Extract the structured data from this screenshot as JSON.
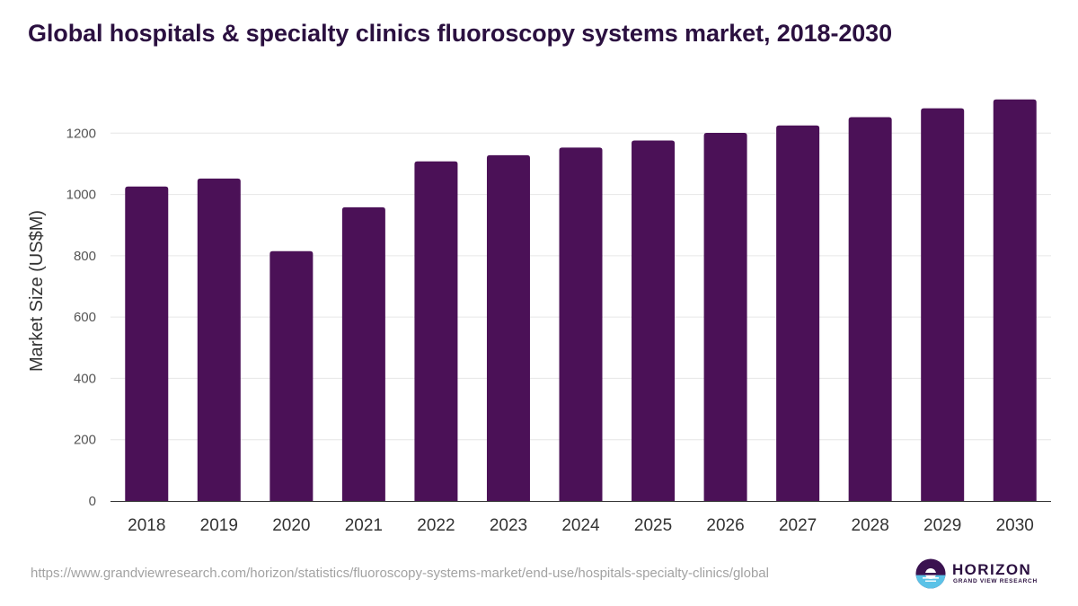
{
  "chart_data": {
    "type": "bar",
    "title": "Global hospitals & specialty clinics fluoroscopy systems market, 2018-2030",
    "xlabel": "",
    "ylabel": "Market Size (US$M)",
    "categories": [
      "2018",
      "2019",
      "2020",
      "2021",
      "2022",
      "2023",
      "2024",
      "2025",
      "2026",
      "2027",
      "2028",
      "2029",
      "2030"
    ],
    "values": [
      1026,
      1052,
      815,
      958,
      1108,
      1128,
      1153,
      1176,
      1201,
      1225,
      1252,
      1281,
      1310
    ],
    "ylim": [
      0,
      1400
    ],
    "yticks": [
      0,
      200,
      400,
      600,
      800,
      1000,
      1200
    ],
    "grid": true,
    "bar_color": "#4b1157",
    "legend": "none"
  },
  "footer": {
    "source_url": "https://www.grandviewresearch.com/horizon/statistics/fluoroscopy-systems-market/end-use/hospitals-specialty-clinics/global"
  },
  "logo": {
    "brand": "HORIZON",
    "subtitle": "GRAND VIEW RESEARCH"
  },
  "colors": {
    "title": "#2b1040",
    "bar": "#4b1157",
    "grid": "#e6e6e6",
    "axis": "#333333",
    "tick_label": "#555555",
    "url": "#a2a2a2",
    "logo_accent": "#5bc2e7"
  }
}
